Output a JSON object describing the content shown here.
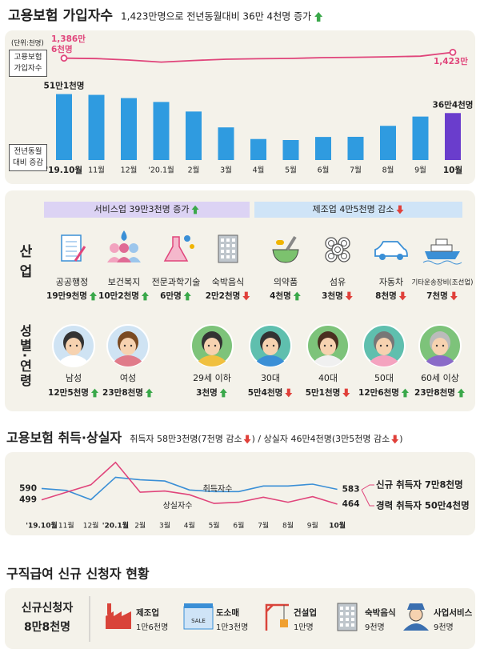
{
  "chart_data": [
    {
      "type": "bar",
      "title": "고용보험 가입자수",
      "subtitle": "1,423만명으로 전년동월대비 36만 4천명 증가",
      "subtitle_trend": "up",
      "unit": "(단위:천명)",
      "categories": [
        "'19.10월",
        "11월",
        "12월",
        "'20.1월",
        "2월",
        "3월",
        "4월",
        "5월",
        "6월",
        "7월",
        "8월",
        "9월",
        "10월"
      ],
      "ylim": [
        0,
        620
      ],
      "y2lim": [
        11000,
        16000
      ],
      "series": [
        {
          "name": "고용보험 가입자수",
          "type": "line",
          "axis": "y2",
          "color": "#e0457b",
          "values": [
            13866,
            13840,
            13750,
            13620,
            13720,
            13800,
            13830,
            13850,
            13900,
            13920,
            13950,
            13990,
            14230
          ],
          "value_labels": [
            "1,386만 6천명",
            null,
            null,
            null,
            null,
            null,
            null,
            null,
            null,
            null,
            null,
            null,
            "1,423만"
          ]
        },
        {
          "name": "전년동월 대비 증감",
          "type": "bar",
          "colors": [
            "#2f9be0",
            "#2f9be0",
            "#2f9be0",
            "#2f9be0",
            "#2f9be0",
            "#2f9be0",
            "#2f9be0",
            "#2f9be0",
            "#2f9be0",
            "#2f9be0",
            "#2f9be0",
            "#2f9be0",
            "#6a3dcc"
          ],
          "values": [
            511,
            505,
            480,
            450,
            376,
            253,
            163,
            155,
            179,
            180,
            265,
            337,
            364
          ],
          "value_labels": [
            "51만1천명",
            null,
            null,
            null,
            null,
            null,
            null,
            null,
            null,
            null,
            null,
            null,
            "36만4천명"
          ]
        }
      ]
    },
    {
      "type": "line",
      "title": "고용보험 취득·상실자",
      "subtitle_parts": [
        {
          "text": "취득자 58만3천명(7천명 감소",
          "trend": "down"
        },
        {
          "text": ") / 상실자 46만4천명(3만5천명 감소",
          "trend": "down"
        },
        {
          "text": ")"
        }
      ],
      "categories": [
        "'19.10월",
        "11월",
        "12월",
        "'20.1월",
        "2월",
        "3월",
        "4월",
        "5월",
        "6월",
        "7월",
        "8월",
        "9월",
        "10월"
      ],
      "ylim": [
        400,
        850
      ],
      "series": [
        {
          "name": "취득자수",
          "color": "#3a8fd6",
          "values": [
            590,
            575,
            500,
            680,
            660,
            650,
            578,
            565,
            565,
            610,
            610,
            625,
            583
          ],
          "value_labels": [
            "590",
            null,
            null,
            null,
            null,
            null,
            null,
            null,
            null,
            null,
            null,
            null,
            "583"
          ]
        },
        {
          "name": "상실자수",
          "color": "#e0457b",
          "values": [
            499,
            560,
            620,
            800,
            560,
            570,
            540,
            470,
            480,
            520,
            480,
            525,
            464
          ],
          "value_labels": [
            "499",
            null,
            null,
            null,
            null,
            null,
            null,
            null,
            null,
            null,
            null,
            null,
            "464"
          ]
        }
      ],
      "annotations": [
        {
          "label": "신규 취득자",
          "value": "7만8천명"
        },
        {
          "label": "경력 취득자",
          "value": "50만4천명"
        }
      ]
    }
  ],
  "industry": {
    "row_label": "산업",
    "groups": [
      {
        "label": "서비스업 39만3천명 증가",
        "trend": "up"
      },
      {
        "label": "제조업 4만5천명 감소",
        "trend": "down"
      }
    ],
    "items": [
      {
        "name": "공공행정",
        "value": "19만9천명",
        "trend": "up"
      },
      {
        "name": "보건복지",
        "value": "10만2천명",
        "trend": "up"
      },
      {
        "name": "전문과학기술",
        "value": "6만명",
        "trend": "up"
      },
      {
        "name": "숙박음식",
        "value": "2만2천명",
        "trend": "down"
      },
      {
        "name": "의약품",
        "value": "4천명",
        "trend": "up"
      },
      {
        "name": "섬유",
        "value": "3천명",
        "trend": "down"
      },
      {
        "name": "자동차",
        "value": "8천명",
        "trend": "down"
      },
      {
        "name": "기타운송장비(조선업)",
        "value": "7천명",
        "trend": "down"
      }
    ]
  },
  "demographics": {
    "row_label": "성별·연령",
    "items": [
      {
        "name": "남성",
        "value": "12만5천명",
        "trend": "up"
      },
      {
        "name": "여성",
        "value": "23만8천명",
        "trend": "up"
      },
      {
        "name": "29세 이하",
        "value": "3천명",
        "trend": "up"
      },
      {
        "name": "30대",
        "value": "5만4천명",
        "trend": "down"
      },
      {
        "name": "40대",
        "value": "5만1천명",
        "trend": "down"
      },
      {
        "name": "50대",
        "value": "12만6천명",
        "trend": "up"
      },
      {
        "name": "60세 이상",
        "value": "23만8천명",
        "trend": "up"
      }
    ]
  },
  "claims": {
    "title": "구직급여 신규 신청자 현황",
    "label": "신규신청자",
    "total": "8만8천명",
    "items": [
      {
        "name": "제조업",
        "value": "1만6천명"
      },
      {
        "name": "도소매",
        "value": "1만3천명",
        "sign": "SALE"
      },
      {
        "name": "건설업",
        "value": "1만명"
      },
      {
        "name": "숙박음식",
        "value": "9천명"
      },
      {
        "name": "사업서비스",
        "value": "9천명"
      }
    ]
  }
}
